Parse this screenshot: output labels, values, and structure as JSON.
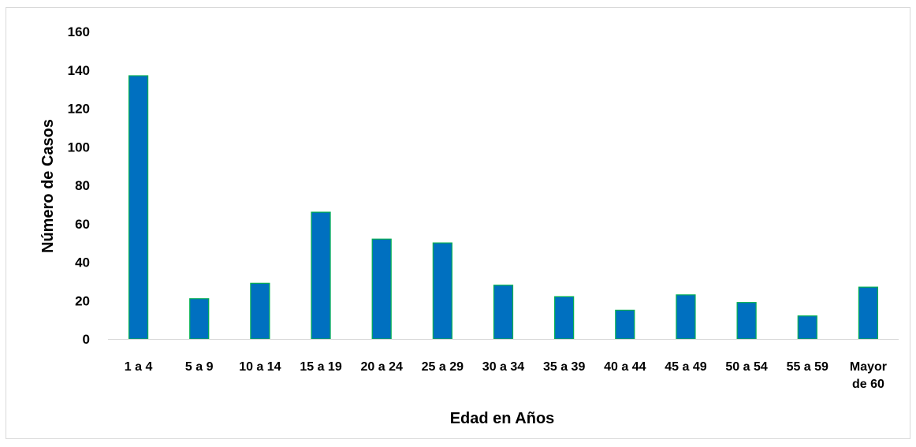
{
  "chart_data": {
    "type": "bar",
    "title": "",
    "xlabel": "Edad en Años",
    "ylabel": "Número de Casos",
    "categories": [
      "1 a 4",
      "5 a 9",
      "10 a 14",
      "15 a 19",
      "20 a 24",
      "25 a 29",
      "30 a 34",
      "35 a 39",
      "40 a 44",
      "45 a 49",
      "50 a 54",
      "55 a 59",
      "Mayor de 60"
    ],
    "values": [
      137,
      21,
      29,
      66,
      52,
      50,
      28,
      22,
      15,
      23,
      19,
      12,
      27
    ],
    "ylim": [
      0,
      160
    ],
    "yticks": [
      0,
      20,
      40,
      60,
      80,
      100,
      120,
      140,
      160
    ],
    "grid": false,
    "legend": "none",
    "colors": {
      "bar_fill": "#0070c0",
      "bar_stroke": "#00b050",
      "axis": "#d9d9d9"
    }
  }
}
